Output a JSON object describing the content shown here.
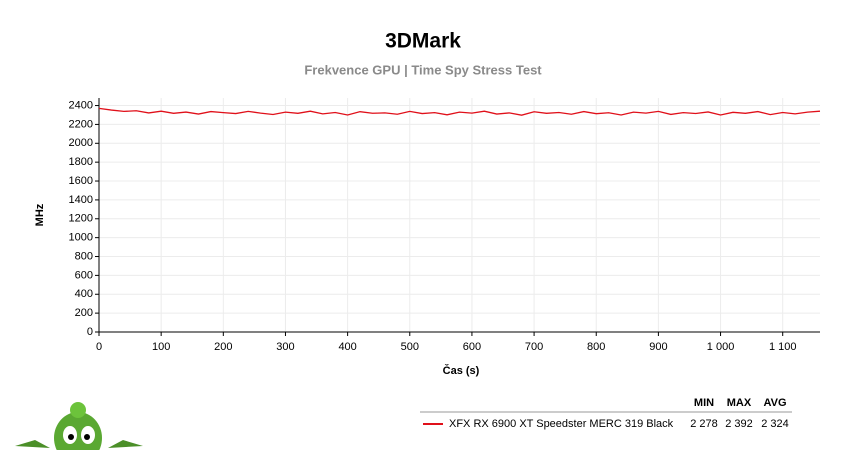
{
  "chart_data": {
    "type": "line",
    "title": "3DMark",
    "subtitle": "Frekvence GPU | Time Spy Stress Test",
    "x_label": "Čas (s)",
    "y_label": "MHz",
    "x": [
      0,
      20,
      40,
      60,
      80,
      100,
      120,
      140,
      160,
      180,
      200,
      220,
      240,
      260,
      280,
      300,
      320,
      340,
      360,
      380,
      400,
      420,
      440,
      460,
      480,
      500,
      520,
      540,
      560,
      580,
      600,
      620,
      640,
      660,
      680,
      700,
      720,
      740,
      760,
      780,
      800,
      820,
      840,
      860,
      880,
      900,
      920,
      940,
      960,
      980,
      1000,
      1020,
      1040,
      1060,
      1080,
      1100,
      1120,
      1140,
      1160
    ],
    "series": [
      {
        "name": "XFX RX 6900 XT Speedster MERC 319 Black",
        "color": "#e0101a",
        "values": [
          2370,
          2352,
          2338,
          2345,
          2322,
          2340,
          2318,
          2331,
          2310,
          2336,
          2325,
          2315,
          2338,
          2320,
          2305,
          2330,
          2318,
          2340,
          2312,
          2326,
          2300,
          2335,
          2318,
          2322,
          2308,
          2338,
          2315,
          2325,
          2302,
          2330,
          2320,
          2340,
          2310,
          2322,
          2298,
          2334,
          2318,
          2326,
          2308,
          2336,
          2314,
          2324,
          2300,
          2330,
          2320,
          2338,
          2306,
          2325,
          2316,
          2332,
          2300,
          2328,
          2318,
          2336,
          2304,
          2326,
          2312,
          2330,
          2340
        ]
      }
    ],
    "xlim": [
      0,
      1160
    ],
    "ylim": [
      0,
      2480
    ],
    "xticks": [
      0,
      100,
      200,
      300,
      400,
      500,
      600,
      700,
      800,
      900,
      {
        "value": 1000,
        "label": "1 000"
      },
      {
        "value": 1100,
        "label": "1 100"
      }
    ],
    "yticks": [
      0,
      200,
      400,
      600,
      800,
      1000,
      1200,
      1400,
      1600,
      1800,
      2000,
      2200,
      2400
    ],
    "grid": true,
    "stats": {
      "columns": [
        "MIN",
        "MAX",
        "AVG"
      ],
      "values": [
        "2 278",
        "2 392",
        "2 324"
      ]
    }
  }
}
